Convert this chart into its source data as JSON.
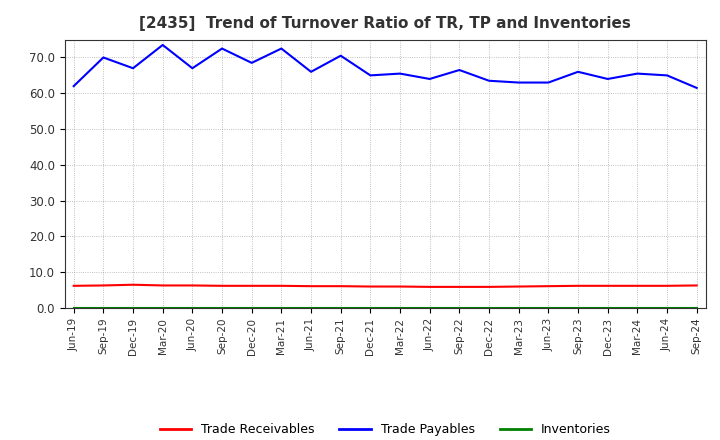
{
  "title": "[2435]  Trend of Turnover Ratio of TR, TP and Inventories",
  "x_labels": [
    "Jun-19",
    "Sep-19",
    "Dec-19",
    "Mar-20",
    "Jun-20",
    "Sep-20",
    "Dec-20",
    "Mar-21",
    "Jun-21",
    "Sep-21",
    "Dec-21",
    "Mar-22",
    "Jun-22",
    "Sep-22",
    "Dec-22",
    "Mar-23",
    "Jun-23",
    "Sep-23",
    "Dec-23",
    "Mar-24",
    "Jun-24",
    "Sep-24"
  ],
  "trade_payables": [
    62.0,
    70.0,
    67.0,
    73.5,
    67.0,
    72.5,
    68.5,
    72.5,
    66.0,
    70.5,
    65.0,
    65.5,
    64.0,
    66.5,
    63.5,
    63.0,
    63.0,
    66.0,
    64.0,
    65.5,
    65.0,
    61.5
  ],
  "trade_receivables": [
    6.2,
    6.3,
    6.5,
    6.3,
    6.3,
    6.2,
    6.2,
    6.2,
    6.1,
    6.1,
    6.0,
    6.0,
    5.9,
    5.9,
    5.9,
    6.0,
    6.1,
    6.2,
    6.2,
    6.2,
    6.2,
    6.3
  ],
  "inventories": [
    0.0,
    0.0,
    0.0,
    0.0,
    0.0,
    0.0,
    0.0,
    0.0,
    0.0,
    0.0,
    0.0,
    0.0,
    0.0,
    0.0,
    0.0,
    0.0,
    0.0,
    0.0,
    0.0,
    0.0,
    0.0,
    0.0
  ],
  "color_tp": "#0000ff",
  "color_tr": "#ff0000",
  "color_inv": "#008000",
  "ylim": [
    0,
    75
  ],
  "yticks": [
    0.0,
    10.0,
    20.0,
    30.0,
    40.0,
    50.0,
    60.0,
    70.0
  ],
  "legend_labels": [
    "Trade Receivables",
    "Trade Payables",
    "Inventories"
  ],
  "background_color": "#ffffff",
  "grid_color": "#999999",
  "title_color": "#333333"
}
